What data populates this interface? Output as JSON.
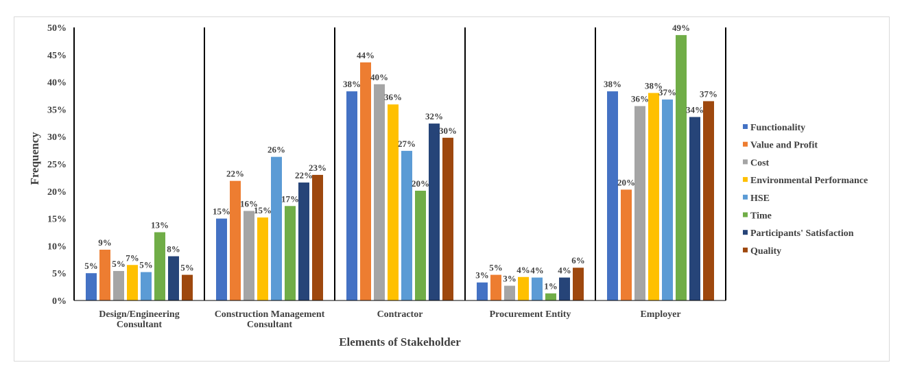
{
  "chart_data": {
    "type": "bar",
    "title": "",
    "xlabel": "Elements of Stakeholder",
    "ylabel": "Frequency",
    "ylim": [
      0,
      50
    ],
    "y_ticks": [
      "0%",
      "5%",
      "10%",
      "15%",
      "20%",
      "25%",
      "30%",
      "35%",
      "40%",
      "45%",
      "50%"
    ],
    "categories": [
      [
        "Design/Engineering",
        "Consultant"
      ],
      [
        "Construction Management",
        "Consultant"
      ],
      [
        "Contractor"
      ],
      [
        "Procurement Entity"
      ],
      [
        "Employer"
      ]
    ],
    "legend_position": "right",
    "grid": false,
    "series": [
      {
        "name": "Functionality",
        "color": "#4472C4",
        "values": [
          5,
          15,
          38.3,
          3.3,
          38.3
        ],
        "labels": [
          "5%",
          "15%",
          "38%",
          "3%",
          "38%"
        ]
      },
      {
        "name": "Value and Profit",
        "color": "#ED7D31",
        "values": [
          9.3,
          21.9,
          43.6,
          4.7,
          20.3
        ],
        "labels": [
          "9%",
          "22%",
          "44%",
          "5%",
          "20%"
        ]
      },
      {
        "name": "Cost",
        "color": "#A5A5A5",
        "values": [
          5.4,
          16.4,
          39.6,
          2.7,
          35.6
        ],
        "labels": [
          "5%",
          "16%",
          "40%",
          "3%",
          "36%"
        ]
      },
      {
        "name": "Environmental Performance",
        "color": "#FFC000",
        "values": [
          6.5,
          15.2,
          35.9,
          4.3,
          38
        ],
        "labels": [
          "7%",
          "15%",
          "36%",
          "4%",
          "38%"
        ]
      },
      {
        "name": "HSE",
        "color": "#5B9BD5",
        "values": [
          5.2,
          26.3,
          27.4,
          4.2,
          36.8
        ],
        "labels": [
          "5%",
          "26%",
          "27%",
          "4%",
          "37%"
        ]
      },
      {
        "name": "Time",
        "color": "#70AD47",
        "values": [
          12.5,
          17.3,
          20.1,
          1.3,
          48.6
        ],
        "labels": [
          "13%",
          "17%",
          "20%",
          "1%",
          "49%"
        ]
      },
      {
        "name": "Participants' Satisfaction",
        "color": "#264478",
        "values": [
          8.1,
          21.6,
          32.4,
          4.2,
          33.6
        ],
        "labels": [
          "8%",
          "22%",
          "32%",
          "4%",
          "34%"
        ]
      },
      {
        "name": "Quality",
        "color": "#9E480E",
        "values": [
          4.7,
          23,
          29.8,
          6,
          36.5
        ],
        "labels": [
          "5%",
          "23%",
          "30%",
          "6%",
          "37%"
        ]
      }
    ]
  }
}
